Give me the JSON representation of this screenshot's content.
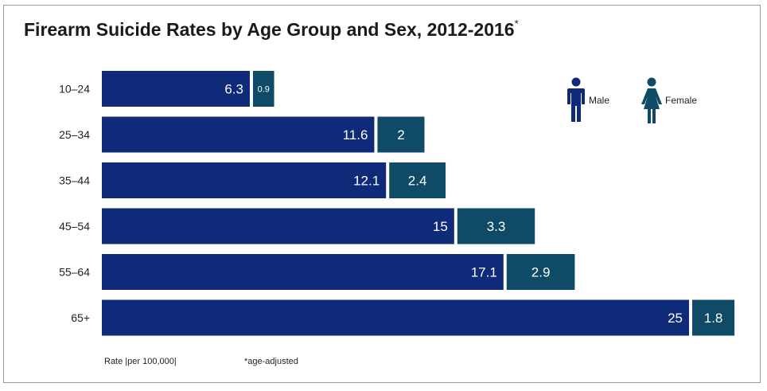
{
  "title": "Firearm Suicide Rates by Age Group and Sex, 2012-2016",
  "title_marker": "*",
  "footnotes": {
    "rate_label": "Rate  |per 100,000|",
    "age_adjusted": "*age-adjusted"
  },
  "legend": {
    "male": {
      "label": "Male",
      "icon": "male-person-icon",
      "color": "#0e2a78"
    },
    "female": {
      "label": "Female",
      "icon": "female-person-icon",
      "color": "#0f4b66"
    }
  },
  "chart_data": {
    "type": "bar",
    "orientation": "horizontal",
    "stacked": true,
    "title": "Firearm Suicide Rates by Age Group and Sex, 2012-2016*",
    "categories": [
      "10–24",
      "25–34",
      "35–44",
      "45–54",
      "55–64",
      "65+"
    ],
    "series": [
      {
        "name": "Male",
        "values": [
          6.3,
          11.6,
          12.1,
          15,
          17.1,
          25
        ],
        "color": "#0e2a78"
      },
      {
        "name": "Female",
        "values": [
          0.9,
          2,
          2.4,
          3.3,
          2.9,
          1.8
        ],
        "color": "#0f4b66"
      }
    ],
    "xlabel": "Rate  |per 100,000|",
    "xlim": [
      0,
      27
    ],
    "grid": false,
    "legend_position": "top-right"
  }
}
